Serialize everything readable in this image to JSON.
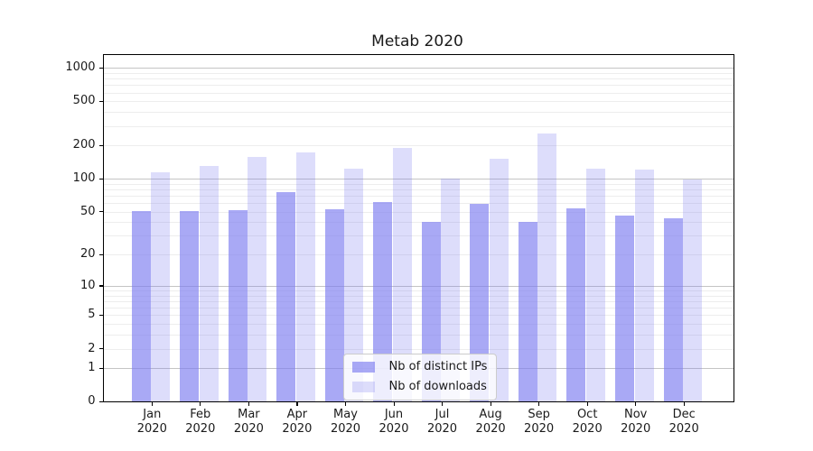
{
  "title": "Metab 2020",
  "chart_data": {
    "type": "bar",
    "title": "Metab 2020",
    "categories": [
      "Jan 2020",
      "Feb 2020",
      "Mar 2020",
      "Apr 2020",
      "May 2020",
      "Jun 2020",
      "Jul 2020",
      "Aug 2020",
      "Sep 2020",
      "Oct 2020",
      "Nov 2020",
      "Dec 2020"
    ],
    "series": [
      {
        "name": "Nb of distinct IPs",
        "values": [
          51,
          51,
          52,
          76,
          53,
          61,
          40,
          59,
          40,
          54,
          46,
          44
        ],
        "color": "rgba(124,124,240,0.66)"
      },
      {
        "name": "Nb of downloads",
        "values": [
          115,
          131,
          158,
          173,
          124,
          190,
          101,
          153,
          257,
          123,
          121,
          99
        ],
        "color": "rgba(124,124,240,0.26)"
      }
    ],
    "yscale": "symlog-log1p",
    "yticks": [
      0,
      1,
      2,
      5,
      10,
      20,
      50,
      100,
      200,
      500,
      1000
    ],
    "ylim": [
      0,
      1000
    ],
    "xlabel": "",
    "ylabel": "",
    "grid": "horizontal major+minor",
    "legend_position": "inside-bottom-center"
  },
  "legend": {
    "items": [
      {
        "label": "Nb of distinct IPs",
        "color": "rgba(124,124,240,0.66)"
      },
      {
        "label": "Nb of downloads",
        "color": "rgba(124,124,240,0.26)"
      }
    ]
  },
  "colors": {
    "bar_base": "#7c7cf0",
    "ips_bar": "rgba(124,124,240,0.66)",
    "downloads_bar": "rgba(124,124,240,0.26)",
    "grid_minor": "#ededed",
    "grid_major": "#c4c4c4",
    "axis": "#000000",
    "text": "#1a1a1a",
    "background": "#ffffff",
    "legend_bg": "rgba(255,255,255,0.8)",
    "legend_border": "#cccccc"
  }
}
